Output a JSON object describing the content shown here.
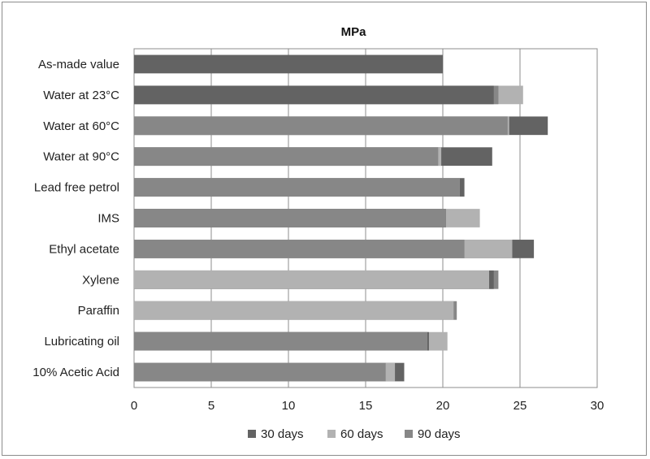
{
  "chart_data": {
    "type": "bar",
    "orientation": "horizontal",
    "stacked": false,
    "title": "MPa",
    "xlabel": "",
    "ylabel": "",
    "xlim": [
      0,
      30
    ],
    "x_ticks": [
      "0",
      "5",
      "10",
      "15",
      "20",
      "25",
      "30"
    ],
    "grid": true,
    "legend_position": "bottom",
    "categories": [
      "As-made value",
      "Water at 23°C",
      "Water at 60°C",
      "Water at 90°C",
      "Lead free petrol",
      "IMS",
      "Ethyl acetate",
      "Xylene",
      "Paraffin",
      "Lubricating oil",
      "10% Acetic Acid"
    ],
    "series": [
      {
        "name": "30 days",
        "color": "#636363",
        "values": [
          20.0,
          23.3,
          26.8,
          23.2,
          21.4,
          20.2,
          25.9,
          23.3,
          20.9,
          19.1,
          17.5
        ]
      },
      {
        "name": "60 days",
        "color": "#b2b2b2",
        "values": [
          null,
          25.2,
          24.3,
          19.9,
          21.1,
          22.4,
          24.5,
          23.0,
          20.7,
          20.3,
          16.9
        ]
      },
      {
        "name": "90 days",
        "color": "#878787",
        "values": [
          null,
          23.6,
          24.2,
          19.7,
          21.1,
          20.2,
          21.4,
          23.6,
          20.9,
          19.0,
          16.3
        ]
      }
    ]
  }
}
